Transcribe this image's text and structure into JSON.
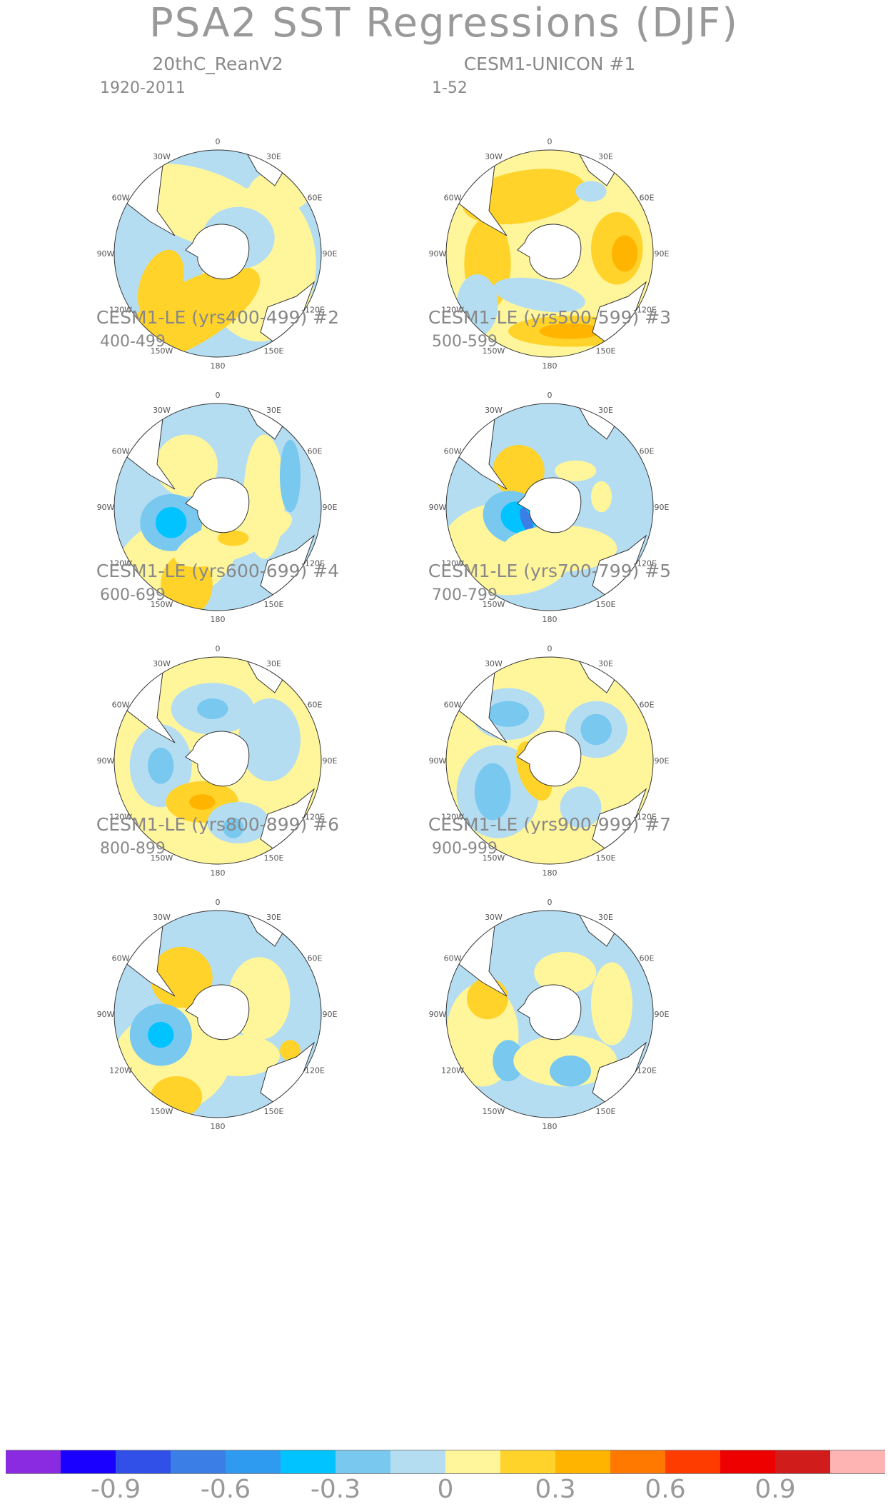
{
  "figure": {
    "title": "PSA2 SST Regressions (DJF)"
  },
  "panels": [
    {
      "title": "20thC_ReanV2",
      "tag": "",
      "years": "1920-2011",
      "pattern": "pA"
    },
    {
      "title": "CESM1-UNICON",
      "tag": "#1",
      "years": "1-52",
      "pattern": "pB"
    },
    {
      "title": "CESM1-LE (yrs400-499) #2",
      "tag": "",
      "years": "400-499",
      "pattern": "pC"
    },
    {
      "title": "CESM1-LE (yrs500-599) #3",
      "tag": "",
      "years": "500-599",
      "pattern": "pD"
    },
    {
      "title": "CESM1-LE (yrs600-699) #4",
      "tag": "",
      "years": "600-699",
      "pattern": "pE"
    },
    {
      "title": "CESM1-LE (yrs700-799) #5",
      "tag": "",
      "years": "700-799",
      "pattern": "pF"
    },
    {
      "title": "CESM1-LE (yrs800-899) #6",
      "tag": "",
      "years": "800-899",
      "pattern": "pG"
    },
    {
      "title": "CESM1-LE (yrs900-999) #7",
      "tag": "",
      "years": "900-999",
      "pattern": "pH"
    }
  ],
  "longitude_labels": [
    "0",
    "30E",
    "60E",
    "90E",
    "120E",
    "150E",
    "180",
    "150W",
    "120W",
    "90W",
    "60W",
    "30W"
  ],
  "colorbar": {
    "colors": [
      "#8a2be2",
      "#1a00ff",
      "#3050e8",
      "#3a7ee6",
      "#2f9bf0",
      "#00c3ff",
      "#78c8f0",
      "#b4ddf2",
      "#fff59b",
      "#ffd32a",
      "#ffb400",
      "#ff7800",
      "#ff3c00",
      "#ee0000",
      "#d11c1c",
      "#ffb4b4"
    ],
    "labels": [
      "-0.9",
      "-0.6",
      "-0.3",
      "0",
      "0.3",
      "0.6",
      "0.9"
    ]
  },
  "palette": {
    "light_blue": "#b4ddf2",
    "mid_blue": "#78c8f0",
    "cyan": "#00c3ff",
    "dark_blue": "#3a7ee6",
    "light_yellow": "#fff59b",
    "yellow": "#ffd32a",
    "orange": "#ffb400",
    "land": "#ffffff"
  }
}
